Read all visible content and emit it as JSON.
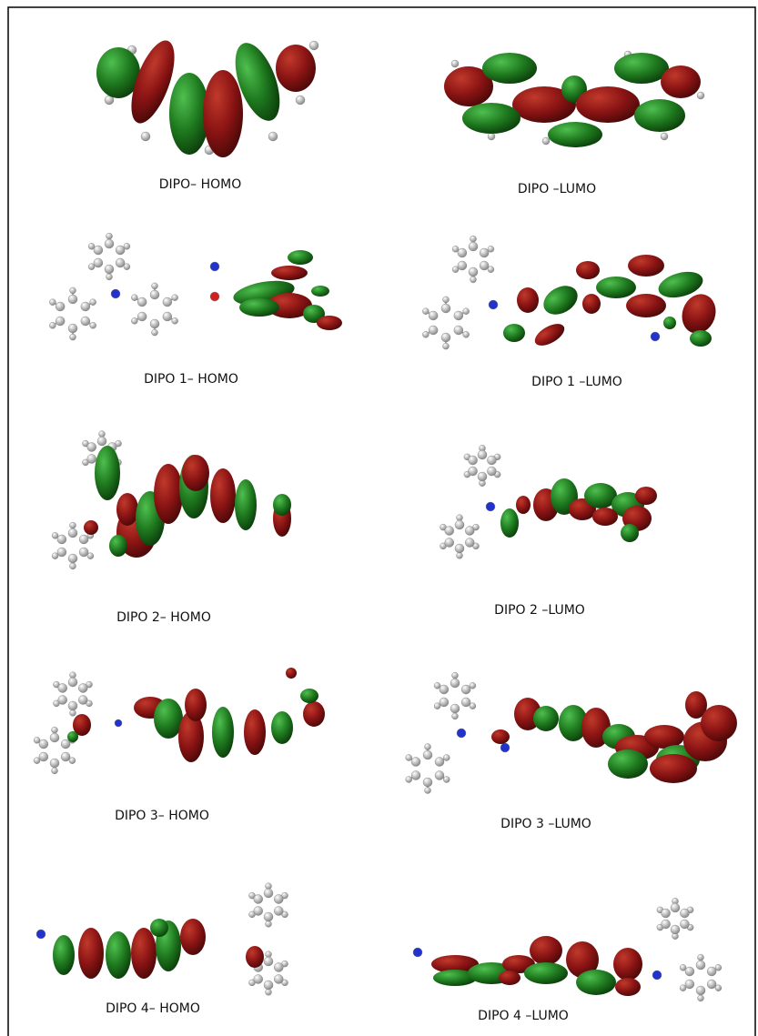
{
  "panels": [
    {
      "label": "DIPO– HOMO"
    },
    {
      "label": "DIPO –LUMO"
    },
    {
      "label": "DIPO 1– HOMO"
    },
    {
      "label": "DIPO 1 –LUMO"
    },
    {
      "label": "DIPO 2– HOMO"
    },
    {
      "label": "DIPO 2 –LUMO"
    },
    {
      "label": "DIPO 3– HOMO"
    },
    {
      "label": "DIPO 3 –LUMO"
    },
    {
      "label": "DIPO 4– HOMO"
    },
    {
      "label": "DIPO 4 –LUMO"
    }
  ]
}
